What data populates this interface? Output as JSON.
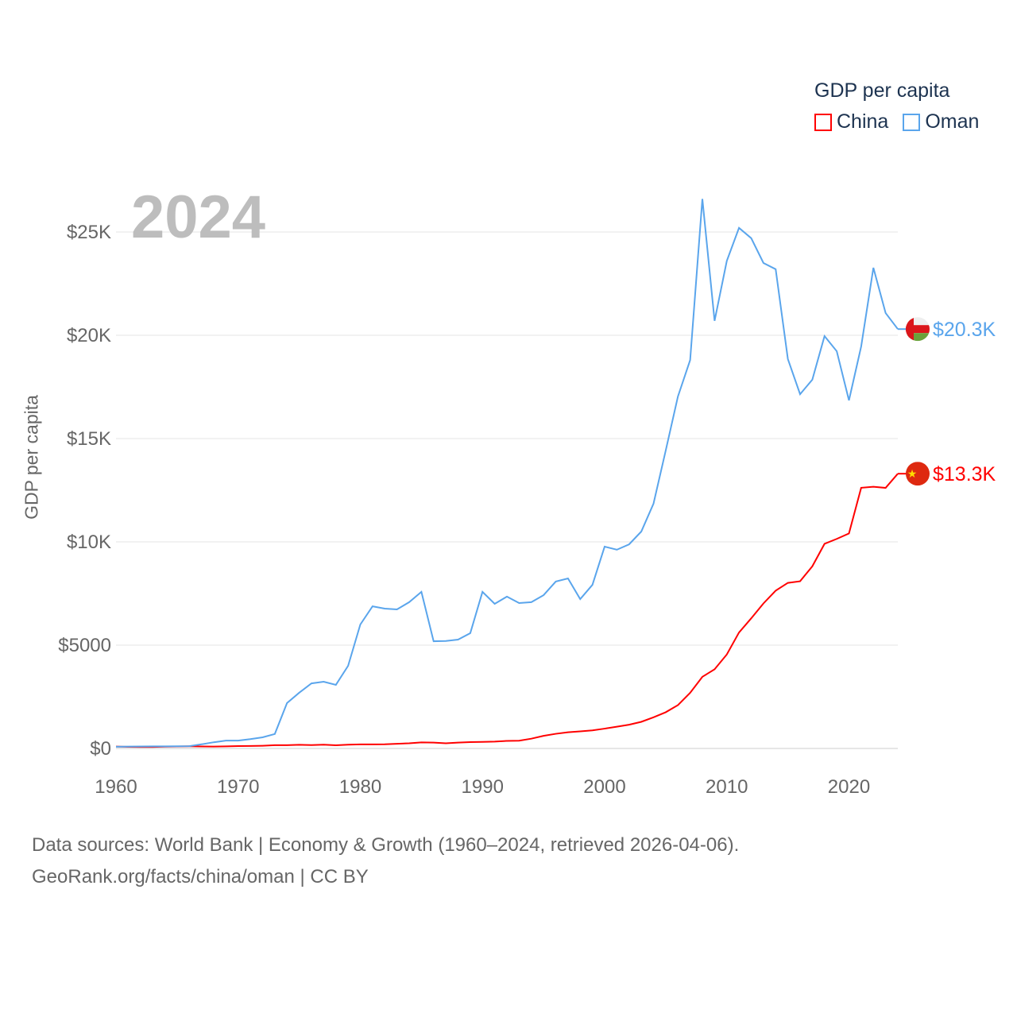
{
  "chart_data": {
    "type": "line",
    "title_year": "2024",
    "ylabel": "GDP per capita",
    "xlabel": "",
    "xlim": [
      1960,
      2024
    ],
    "ylim": [
      0,
      25000
    ],
    "x_ticks": [
      "1960",
      "1970",
      "1980",
      "1990",
      "2000",
      "2010",
      "2020"
    ],
    "x_tick_values": [
      1960,
      1970,
      1980,
      1990,
      2000,
      2010,
      2020
    ],
    "y_ticks": [
      "$0",
      "$5000",
      "$10K",
      "$15K",
      "$20K",
      "$25K"
    ],
    "y_tick_values": [
      0,
      5000,
      10000,
      15000,
      20000,
      25000
    ],
    "grid": true,
    "legend": {
      "title": "GDP per capita",
      "position": "top-right",
      "entries": [
        "China",
        "Oman"
      ]
    },
    "x": [
      1960,
      1961,
      1962,
      1963,
      1964,
      1965,
      1966,
      1967,
      1968,
      1969,
      1970,
      1971,
      1972,
      1973,
      1974,
      1975,
      1976,
      1977,
      1978,
      1979,
      1980,
      1981,
      1982,
      1983,
      1984,
      1985,
      1986,
      1987,
      1988,
      1989,
      1990,
      1991,
      1992,
      1993,
      1994,
      1995,
      1996,
      1997,
      1998,
      1999,
      2000,
      2001,
      2002,
      2003,
      2004,
      2005,
      2006,
      2007,
      2008,
      2009,
      2010,
      2011,
      2012,
      2013,
      2014,
      2015,
      2016,
      2017,
      2018,
      2019,
      2020,
      2021,
      2022,
      2023,
      2024
    ],
    "series": [
      {
        "name": "China",
        "color": "#ff0000",
        "end_label": "$13.3K",
        "values": [
          90,
          76,
          70,
          74,
          85,
          98,
          104,
          97,
          91,
          100,
          113,
          119,
          132,
          157,
          160,
          178,
          165,
          185,
          156,
          183,
          195,
          197,
          203,
          225,
          251,
          294,
          282,
          252,
          283,
          310,
          318,
          333,
          366,
          377,
          473,
          610,
          709,
          782,
          829,
          873,
          959,
          1053,
          1149,
          1289,
          1509,
          1753,
          2099,
          2694,
          3468,
          3832,
          4550,
          5614,
          6300,
          7020,
          7636,
          8016,
          8094,
          8817,
          9905,
          10144,
          10409,
          12618,
          12670,
          12614,
          13300
        ]
      },
      {
        "name": "Oman",
        "color": "#5aa5ec",
        "end_label": "$20.3K",
        "values": [
          80,
          90,
          95,
          100,
          100,
          105,
          110,
          200,
          300,
          380,
          380,
          450,
          540,
          700,
          2200,
          2700,
          3150,
          3230,
          3080,
          4000,
          6000,
          6880,
          6770,
          6730,
          7080,
          7580,
          5190,
          5200,
          5270,
          5580,
          7580,
          7000,
          7350,
          7040,
          7080,
          7420,
          8080,
          8230,
          7230,
          7920,
          9770,
          9620,
          9880,
          10500,
          11850,
          14420,
          17040,
          18800,
          26600,
          20700,
          23600,
          25200,
          24700,
          23500,
          23200,
          18850,
          17150,
          17850,
          19960,
          19230,
          16850,
          19460,
          23270,
          21080,
          20300
        ]
      }
    ]
  },
  "source_line1": "Data sources: World Bank | Economy & Growth (1960–2024, retrieved 2026-04-06).",
  "source_line2": "GeoRank.org/facts/china/oman | CC BY"
}
